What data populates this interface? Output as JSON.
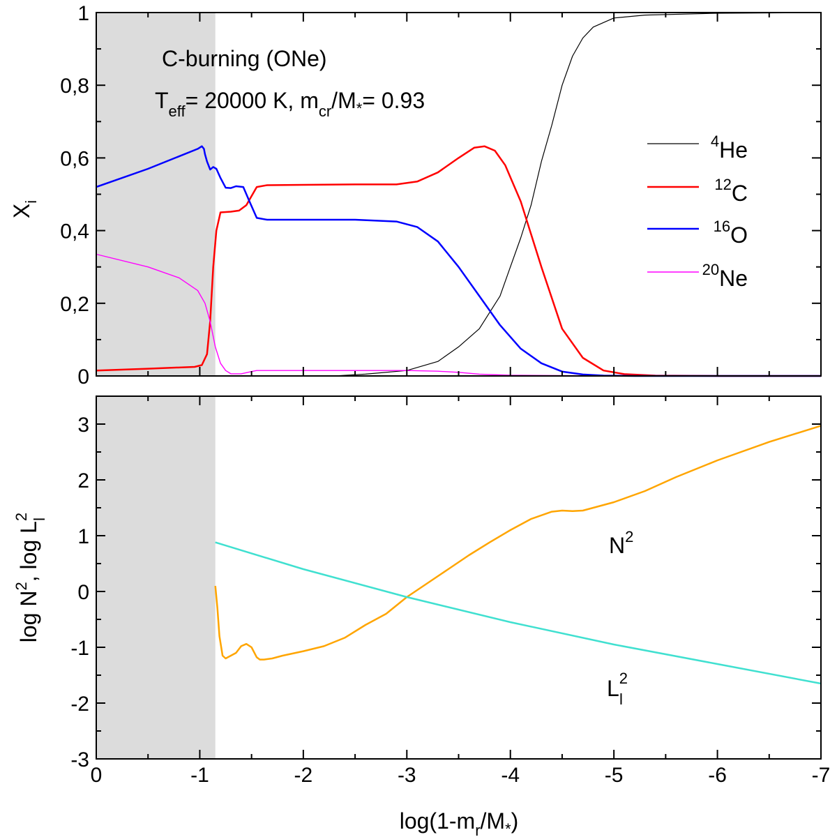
{
  "chart_data": [
    {
      "id": "abundances",
      "type": "line",
      "xlim": [
        0,
        -7
      ],
      "ylim": [
        0,
        1
      ],
      "xlabel": "log(1-m_r/M_*)",
      "ylabel": "X_i",
      "xticks": [
        0,
        -1,
        -2,
        -3,
        -4,
        -5,
        -6,
        -7
      ],
      "yticks": [
        0,
        0.2,
        0.4,
        0.6,
        0.8,
        1
      ],
      "ytick_labels": [
        "0",
        "0,2",
        "0,4",
        "0,6",
        "0,8",
        "1"
      ],
      "shaded_region": [
        0,
        -1.15
      ],
      "annotations": {
        "line1": "C-burning (ONe)",
        "line2": {
          "t": "T",
          "t_sub": "eff",
          "t_rest": "= 20000 K,  m",
          "m_sub": "cr",
          "m_rest": "/M",
          "m_sub2": "*",
          "tail": "= 0.93"
        }
      },
      "legend_position": "right",
      "series": [
        {
          "name": "4He",
          "sup": "4",
          "label": "He",
          "color": "#000000",
          "width": 1.2,
          "x": [
            0,
            -2.3,
            -2.6,
            -3,
            -3.3,
            -3.5,
            -3.7,
            -3.9,
            -4.0,
            -4.1,
            -4.2,
            -4.3,
            -4.4,
            -4.5,
            -4.6,
            -4.7,
            -4.8,
            -5.0,
            -5.3,
            -6,
            -7
          ],
          "y": [
            0,
            0,
            0.005,
            0.015,
            0.04,
            0.08,
            0.13,
            0.22,
            0.3,
            0.38,
            0.47,
            0.59,
            0.69,
            0.8,
            0.88,
            0.93,
            0.96,
            0.985,
            0.993,
            0.998,
            1.0
          ]
        },
        {
          "name": "12C",
          "sup": "12",
          "label": "C",
          "color": "#ff0000",
          "width": 2.5,
          "x": [
            0,
            -0.5,
            -0.95,
            -1.02,
            -1.07,
            -1.1,
            -1.13,
            -1.16,
            -1.2,
            -1.3,
            -1.38,
            -1.45,
            -1.55,
            -1.65,
            -2,
            -2.5,
            -2.9,
            -3.1,
            -3.3,
            -3.5,
            -3.65,
            -3.75,
            -3.85,
            -3.95,
            -4.1,
            -4.3,
            -4.5,
            -4.7,
            -4.9,
            -5.1,
            -5.4,
            -6,
            -7
          ],
          "y": [
            0.015,
            0.02,
            0.025,
            0.03,
            0.06,
            0.15,
            0.3,
            0.4,
            0.45,
            0.452,
            0.455,
            0.47,
            0.52,
            0.525,
            0.526,
            0.527,
            0.527,
            0.535,
            0.56,
            0.6,
            0.628,
            0.632,
            0.62,
            0.58,
            0.48,
            0.3,
            0.13,
            0.05,
            0.015,
            0.005,
            0.001,
            0,
            0
          ]
        },
        {
          "name": "16O",
          "sup": "16",
          "label": "O",
          "color": "#0000ff",
          "width": 2.5,
          "x": [
            0,
            -0.5,
            -0.98,
            -1.02,
            -1.04,
            -1.05,
            -1.07,
            -1.1,
            -1.13,
            -1.16,
            -1.2,
            -1.25,
            -1.3,
            -1.35,
            -1.42,
            -1.48,
            -1.55,
            -1.65,
            -2,
            -2.5,
            -2.9,
            -3.1,
            -3.3,
            -3.5,
            -3.7,
            -3.9,
            -4.1,
            -4.3,
            -4.5,
            -4.7,
            -4.9,
            -5.2,
            -6,
            -7
          ],
          "y": [
            0.52,
            0.57,
            0.625,
            0.632,
            0.625,
            0.61,
            0.59,
            0.568,
            0.575,
            0.57,
            0.545,
            0.518,
            0.517,
            0.522,
            0.52,
            0.48,
            0.435,
            0.43,
            0.43,
            0.43,
            0.425,
            0.41,
            0.37,
            0.3,
            0.22,
            0.14,
            0.075,
            0.035,
            0.012,
            0.004,
            0.001,
            0,
            0,
            0
          ]
        },
        {
          "name": "20Ne",
          "sup": "20",
          "label": "Ne",
          "color": "#ff00ff",
          "width": 1.4,
          "x": [
            0,
            -0.5,
            -0.8,
            -0.98,
            -1.05,
            -1.1,
            -1.15,
            -1.2,
            -1.25,
            -1.3,
            -1.4,
            -1.5,
            -1.55,
            -2,
            -2.5,
            -3,
            -3.3,
            -3.5,
            -3.7,
            -4,
            -5,
            -7
          ],
          "y": [
            0.335,
            0.3,
            0.27,
            0.235,
            0.2,
            0.15,
            0.08,
            0.035,
            0.015,
            0.006,
            0.006,
            0.012,
            0.015,
            0.015,
            0.015,
            0.015,
            0.013,
            0.01,
            0.005,
            0.002,
            0,
            0
          ]
        }
      ]
    },
    {
      "id": "frequencies",
      "type": "line",
      "xlim": [
        0,
        -7
      ],
      "ylim": [
        -3,
        3.5
      ],
      "xlabel": "log(1-m_r/M_*)",
      "ylabel": "log N^2, log L_l^2",
      "xticks": [
        0,
        -1,
        -2,
        -3,
        -4,
        -5,
        -6,
        -7
      ],
      "xtick_labels": [
        "0",
        "-1",
        "-2",
        "-3",
        "-4",
        "-5",
        "-6",
        "-7"
      ],
      "yticks": [
        -3,
        -2,
        -1,
        0,
        1,
        2,
        3
      ],
      "ytick_labels": [
        "-3",
        "-2",
        "-1",
        "0",
        "1",
        "2",
        "3"
      ],
      "shaded_region": [
        0,
        -1.15
      ],
      "series": [
        {
          "name": "N2",
          "label": "N",
          "sup": "2",
          "color": "#ffa500",
          "width": 2.5,
          "x": [
            -1.15,
            -1.17,
            -1.19,
            -1.22,
            -1.25,
            -1.3,
            -1.35,
            -1.4,
            -1.45,
            -1.5,
            -1.55,
            -1.58,
            -1.62,
            -1.7,
            -1.8,
            -2,
            -2.2,
            -2.4,
            -2.6,
            -2.8,
            -3,
            -3.2,
            -3.4,
            -3.6,
            -3.8,
            -4,
            -4.2,
            -4.4,
            -4.5,
            -4.6,
            -4.7,
            -4.8,
            -5,
            -5.3,
            -5.6,
            -6,
            -6.5,
            -7
          ],
          "y": [
            0.1,
            -0.3,
            -0.8,
            -1.15,
            -1.2,
            -1.15,
            -1.1,
            -0.98,
            -0.94,
            -1.0,
            -1.18,
            -1.22,
            -1.22,
            -1.2,
            -1.15,
            -1.07,
            -0.98,
            -0.83,
            -0.6,
            -0.4,
            -0.1,
            0.15,
            0.4,
            0.65,
            0.88,
            1.1,
            1.3,
            1.43,
            1.45,
            1.44,
            1.45,
            1.5,
            1.6,
            1.8,
            2.05,
            2.35,
            2.68,
            2.97
          ]
        },
        {
          "name": "L2",
          "label": "L",
          "sup": "2",
          "sub": "l",
          "color": "#40e0d0",
          "width": 2.5,
          "x": [
            -1.15,
            -2,
            -3,
            -4,
            -5,
            -6,
            -7
          ],
          "y": [
            0.88,
            0.4,
            -0.1,
            -0.55,
            -0.95,
            -1.3,
            -1.65
          ]
        }
      ]
    }
  ]
}
